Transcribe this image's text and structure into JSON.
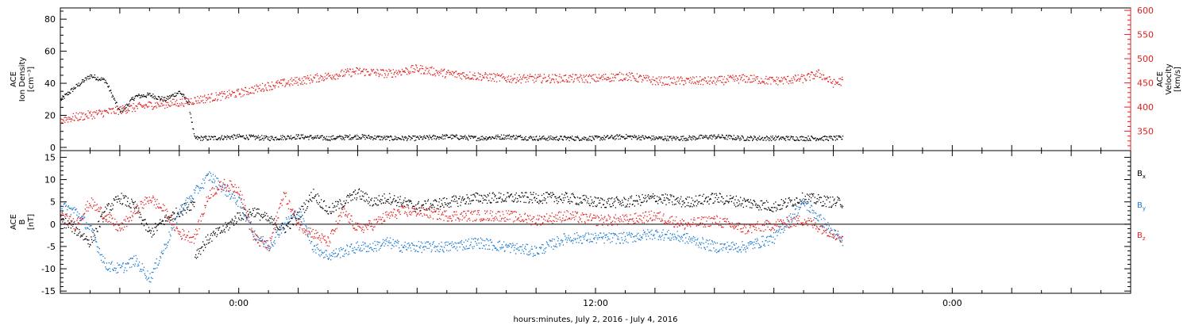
{
  "colors": {
    "density": "#000000",
    "velocity": "#e02020",
    "bx": "#000000",
    "by": "#1a78d0",
    "bz": "#e02020"
  },
  "chart_data": [
    {
      "type": "scatter",
      "panel": "top",
      "left_axis_label": [
        "ACE",
        "Ion Density",
        "[cm⁻³]"
      ],
      "right_axis_label": [
        "ACE",
        "Velocity",
        "[km/s]"
      ],
      "xlim_hours": [
        -6,
        30
      ],
      "ylim_left": [
        -2,
        87
      ],
      "ylim_right": [
        310,
        605
      ],
      "left_ticks": [
        0,
        20,
        40,
        60,
        80
      ],
      "right_ticks": [
        350,
        400,
        450,
        500,
        550,
        600
      ],
      "series": [
        {
          "key": "density",
          "axis": "left",
          "x": [
            -6,
            -5.5,
            -5,
            -4.5,
            -4,
            -3.5,
            -3,
            -2.5,
            -2,
            -1.7,
            -1.5,
            -1,
            0,
            1,
            2,
            3,
            4,
            5,
            6,
            7,
            8,
            9,
            10,
            11,
            12,
            13,
            14,
            15,
            16,
            17,
            18,
            19,
            20,
            20.3
          ],
          "y": [
            30,
            38,
            45,
            42,
            22,
            32,
            33,
            30,
            35,
            28,
            6,
            6,
            7,
            6,
            7,
            6,
            7,
            6,
            6,
            7,
            6,
            7,
            6,
            6,
            6,
            7,
            6,
            6,
            7,
            6,
            6,
            6,
            6,
            6
          ]
        },
        {
          "key": "velocity",
          "axis": "right",
          "x": [
            -6,
            -5,
            -4,
            -3,
            -2,
            -1,
            0,
            1,
            2,
            3,
            4,
            5,
            6,
            7,
            8,
            9,
            10,
            11,
            12,
            13,
            14,
            15,
            16,
            17,
            18,
            19,
            19.5,
            20,
            20.3
          ],
          "y": [
            375,
            385,
            395,
            405,
            410,
            420,
            430,
            445,
            455,
            465,
            475,
            470,
            480,
            470,
            465,
            460,
            460,
            460,
            460,
            465,
            455,
            455,
            455,
            460,
            455,
            460,
            470,
            450,
            455
          ]
        }
      ]
    },
    {
      "type": "scatter",
      "panel": "bottom",
      "left_axis_label": [
        "ACE",
        "B",
        "[nT]"
      ],
      "xlim_hours": [
        -6,
        30
      ],
      "ylim": [
        -15.5,
        16.5
      ],
      "left_ticks": [
        -15,
        -10,
        -5,
        0,
        5,
        10,
        15
      ],
      "x_tick_labels": [
        "0:00",
        "12:00",
        "0:00"
      ],
      "x_tick_hours": [
        0,
        12,
        24
      ],
      "xlabel": "hours:minutes, July  2, 2016 - July  4, 2016",
      "legend": [
        "Bx",
        "By",
        "Bz"
      ],
      "series": [
        {
          "key": "bx",
          "x": [
            -6,
            -5.5,
            -5,
            -4.5,
            -4,
            -3.5,
            -3,
            -2.5,
            -2,
            -1.5,
            -1.5,
            -1,
            -0.5,
            0,
            0.5,
            1,
            1.5,
            2,
            2.5,
            3,
            3.5,
            4,
            4.5,
            5,
            5.5,
            6,
            7,
            8,
            9,
            10,
            11,
            12,
            13,
            14,
            15,
            16,
            17,
            18,
            19,
            20,
            20.3
          ],
          "y": [
            1,
            -1,
            -4,
            3,
            6,
            4,
            -2,
            1,
            3,
            5,
            -7,
            -3,
            -1,
            2,
            3,
            1,
            -1,
            2,
            7,
            3,
            5,
            7,
            5,
            6,
            5,
            4,
            5,
            6,
            6,
            6,
            6,
            5,
            5,
            6,
            5,
            6,
            5,
            4,
            6,
            5,
            5
          ]
        },
        {
          "key": "by",
          "x": [
            -6,
            -5.5,
            -5,
            -4.5,
            -4,
            -3.5,
            -3,
            -2.5,
            -2,
            -1.5,
            -1,
            -0.5,
            0,
            0.5,
            1,
            1.5,
            2,
            2.5,
            3,
            3.5,
            4,
            4.5,
            5,
            5.5,
            6,
            7,
            8,
            9,
            10,
            11,
            12,
            13,
            14,
            15,
            16,
            17,
            18,
            19,
            20,
            20.3
          ],
          "y": [
            4,
            3,
            -1,
            -9,
            -10,
            -8,
            -12,
            -5,
            3,
            7,
            11,
            8,
            5,
            -2,
            -5,
            0,
            3,
            -5,
            -7,
            -6,
            -5,
            -5,
            -4,
            -5,
            -5,
            -5,
            -4,
            -5,
            -6,
            -3,
            -3,
            -3,
            -2,
            -3,
            -5,
            -5,
            -3,
            5,
            -2,
            -4
          ]
        },
        {
          "key": "bz",
          "x": [
            -6,
            -5.5,
            -5,
            -4.5,
            -4,
            -3.5,
            -3,
            -2.5,
            -2,
            -1.5,
            -1,
            -0.5,
            0,
            0.5,
            1,
            1.5,
            2,
            2.5,
            3,
            3.5,
            4,
            4.5,
            5,
            5.5,
            6,
            7,
            8,
            9,
            10,
            11,
            12,
            13,
            14,
            15,
            16,
            17,
            18,
            19,
            20,
            20.3
          ],
          "y": [
            2,
            0,
            5,
            2,
            -1,
            3,
            6,
            3,
            -2,
            -3,
            7,
            9,
            8,
            -3,
            -5,
            7,
            0,
            -2,
            -4,
            3,
            -1,
            0,
            2,
            3,
            3,
            2,
            2,
            2,
            1,
            2,
            1,
            1,
            2,
            0,
            1,
            -1,
            0,
            1,
            -2,
            -3
          ]
        }
      ]
    }
  ]
}
